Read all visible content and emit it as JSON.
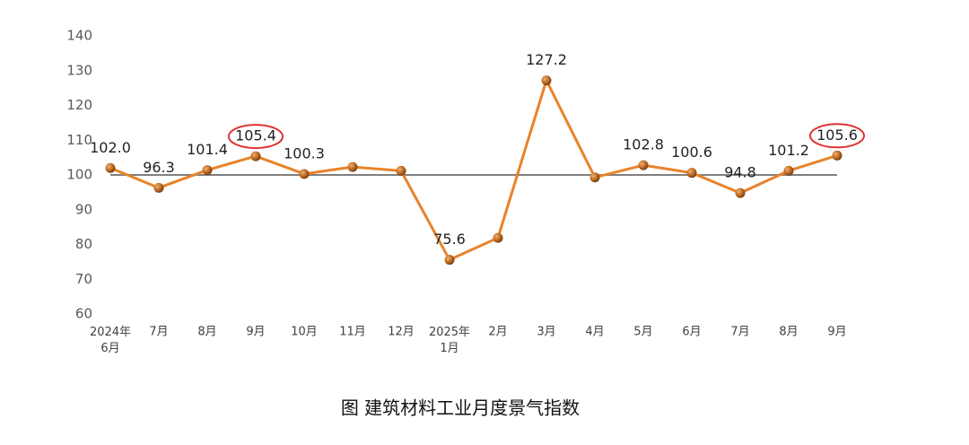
{
  "chart_data": {
    "type": "line",
    "title": "图 建筑材料工业月度景气指数",
    "categories": [
      "2024年\n6月",
      "7月",
      "8月",
      "9月",
      "10月",
      "11月",
      "12月",
      "2025年\n1月",
      "2月",
      "3月",
      "4月",
      "5月",
      "6月",
      "7月",
      "8月",
      "9月"
    ],
    "series": [
      {
        "name": "景气指数",
        "color": "#e8832a",
        "values": [
          102.0,
          96.3,
          101.4,
          105.4,
          100.3,
          102.3,
          101.2,
          75.6,
          81.9,
          127.2,
          99.3,
          102.8,
          100.6,
          94.8,
          101.2,
          105.6
        ],
        "value_labels": [
          "102.0",
          "96.3",
          "101.4",
          "105.4",
          "100.3",
          null,
          null,
          "75.6",
          null,
          "127.2",
          null,
          "102.8",
          "100.6",
          "94.8",
          "101.2",
          "105.6"
        ]
      }
    ],
    "ylim": [
      60,
      140
    ],
    "yticks": [
      60,
      70,
      80,
      90,
      100,
      110,
      120,
      130,
      140
    ],
    "reference_line": 100,
    "highlight": [
      3,
      15
    ],
    "highlight_color": "#e03030",
    "grid": false
  }
}
